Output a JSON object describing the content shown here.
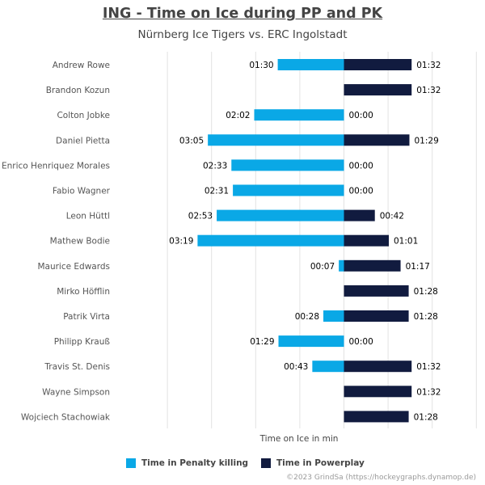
{
  "title": "ING - Time on Ice during PP and PK",
  "subtitle": "Nürnberg Ice Tigers vs. ERC Ingolstadt",
  "credit": "©2023 GrindSa (https://hockeygraphs.dynamop.de)",
  "colors": {
    "pk": "#0aa8e6",
    "pp": "#111b3f"
  },
  "chart_data": {
    "type": "bar",
    "orientation": "horizontal-diverging",
    "xlabel": "Time on Ice in min",
    "categories": [
      "Andrew Rowe",
      "Brandon Kozun",
      "Colton Jobke",
      "Daniel Pietta",
      "Enrico Henriquez Morales",
      "Fabio Wagner",
      "Leon Hüttl",
      "Mathew Bodie",
      "Maurice Edwards",
      "Mirko Höfflin",
      "Patrik Virta",
      "Philipp Krauß",
      "Travis St. Denis",
      "Wayne Simpson",
      "Wojciech Stachowiak"
    ],
    "series": [
      {
        "name": "Time in Penalty killing",
        "direction": "left",
        "values_seconds": [
          90,
          null,
          122,
          185,
          153,
          151,
          173,
          199,
          7,
          null,
          28,
          89,
          43,
          null,
          null
        ],
        "labels": [
          "01:30",
          "",
          "02:02",
          "03:05",
          "02:33",
          "02:31",
          "02:53",
          "03:19",
          "00:07",
          "",
          "00:28",
          "01:29",
          "00:43",
          "",
          ""
        ]
      },
      {
        "name": "Time in Powerplay",
        "direction": "right",
        "values_seconds": [
          92,
          92,
          0,
          89,
          0,
          0,
          42,
          61,
          77,
          88,
          88,
          0,
          92,
          92,
          88
        ],
        "labels": [
          "01:32",
          "01:32",
          "00:00",
          "01:29",
          "00:00",
          "00:00",
          "00:42",
          "01:01",
          "01:17",
          "01:28",
          "01:28",
          "00:00",
          "01:32",
          "01:32",
          "01:28"
        ]
      }
    ],
    "xlim_seconds": [
      -240,
      180
    ],
    "grid": true,
    "legend_position": "bottom"
  }
}
